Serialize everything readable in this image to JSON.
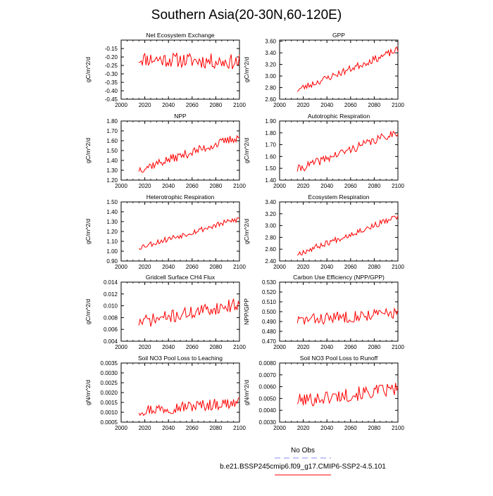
{
  "page_title": "Southern Asia(20-30N,60-120E)",
  "legend": {
    "obs_label": "No Obs",
    "obs_color": "#8888ff",
    "model_label": "b.e21.BSSP245cmip6.f09_g17.CMIP6-SSP2-4.5.101",
    "model_color": "#ff0000"
  },
  "series_color": "#ff0000",
  "chart_data": [
    {
      "type": "line",
      "title": "Net Ecosystem Exchange",
      "ylabel": "gC/m^2/d",
      "xlim": [
        2000,
        2100
      ],
      "xticks": [
        "2000",
        "2020",
        "2040",
        "2060",
        "2080",
        "2100"
      ],
      "ylim": [
        -0.45,
        -0.1
      ],
      "yticks": [
        "-0.15",
        "-0.20",
        "-0.25",
        "-0.30",
        "-0.35",
        "-0.40",
        "-0.45"
      ],
      "ytick_values": [
        -0.15,
        -0.2,
        -0.25,
        -0.3,
        -0.35,
        -0.4,
        -0.45
      ],
      "x_start": 2015,
      "x_end": 2100,
      "trend": [
        -0.21,
        -0.23
      ],
      "noise": 0.045,
      "seed": 11
    },
    {
      "type": "line",
      "title": "GPP",
      "ylabel": "gC/m^2/d",
      "xlim": [
        2000,
        2100
      ],
      "xticks": [
        "2000",
        "2020",
        "2040",
        "2060",
        "2080",
        "2100"
      ],
      "ylim": [
        2.6,
        3.62
      ],
      "yticks": [
        "3.60",
        "3.40",
        "3.20",
        "3.00",
        "2.80",
        "2.60"
      ],
      "ytick_values": [
        3.6,
        3.4,
        3.2,
        3.0,
        2.8,
        2.6
      ],
      "x_start": 2015,
      "x_end": 2100,
      "trend": [
        2.76,
        3.45
      ],
      "noise": 0.06,
      "seed": 23
    },
    {
      "type": "line",
      "title": "NPP",
      "ylabel": "gC/m^2/d",
      "xlim": [
        2000,
        2100
      ],
      "xticks": [
        "2000",
        "2020",
        "2040",
        "2060",
        "2080",
        "2100"
      ],
      "ylim": [
        1.2,
        1.8
      ],
      "yticks": [
        "1.80",
        "1.70",
        "1.60",
        "1.50",
        "1.40",
        "1.30",
        "1.20"
      ],
      "ytick_values": [
        1.8,
        1.7,
        1.6,
        1.5,
        1.4,
        1.3,
        1.2
      ],
      "x_start": 2015,
      "x_end": 2100,
      "trend": [
        1.31,
        1.64
      ],
      "noise": 0.045,
      "seed": 37
    },
    {
      "type": "line",
      "title": "Autotrophic Respiration",
      "ylabel": "gC/m^2/d",
      "xlim": [
        2000,
        2100
      ],
      "xticks": [
        "2000",
        "2020",
        "2040",
        "2060",
        "2080",
        "2100"
      ],
      "ylim": [
        1.4,
        1.9
      ],
      "yticks": [
        "1.90",
        "1.80",
        "1.70",
        "1.60",
        "1.50",
        "1.40"
      ],
      "ytick_values": [
        1.9,
        1.8,
        1.7,
        1.6,
        1.5,
        1.4
      ],
      "x_start": 2015,
      "x_end": 2100,
      "trend": [
        1.49,
        1.81
      ],
      "noise": 0.035,
      "seed": 41
    },
    {
      "type": "line",
      "title": "Heterotrophic Respiration",
      "ylabel": "gC/m^2/d",
      "xlim": [
        2000,
        2100
      ],
      "xticks": [
        "2000",
        "2020",
        "2040",
        "2060",
        "2080",
        "2100"
      ],
      "ylim": [
        0.9,
        1.5
      ],
      "yticks": [
        "1.50",
        "1.40",
        "1.30",
        "1.20",
        "1.10",
        "1.00",
        "0.90"
      ],
      "ytick_values": [
        1.5,
        1.4,
        1.3,
        1.2,
        1.1,
        1.0,
        0.9
      ],
      "x_start": 2015,
      "x_end": 2100,
      "trend": [
        1.04,
        1.33
      ],
      "noise": 0.03,
      "seed": 53
    },
    {
      "type": "line",
      "title": "Ecosystem Respiration",
      "ylabel": "gC/m^2/d",
      "xlim": [
        2000,
        2100
      ],
      "xticks": [
        "2000",
        "2020",
        "2040",
        "2060",
        "2080",
        "2100"
      ],
      "ylim": [
        2.4,
        3.4
      ],
      "yticks": [
        "3.40",
        "3.20",
        "3.00",
        "2.80",
        "2.60",
        "2.40"
      ],
      "ytick_values": [
        3.4,
        3.2,
        3.0,
        2.8,
        2.6,
        2.4
      ],
      "x_start": 2015,
      "x_end": 2100,
      "trend": [
        2.52,
        3.15
      ],
      "noise": 0.05,
      "seed": 67
    },
    {
      "type": "line",
      "title": "Gridcell Surface CH4 Flux",
      "ylabel": "gC/m^2/d",
      "xlim": [
        2000,
        2100
      ],
      "xticks": [
        "2000",
        "2020",
        "2040",
        "2060",
        "2080",
        "2100"
      ],
      "ylim": [
        0.004,
        0.014
      ],
      "yticks": [
        "0.014",
        "0.012",
        "0.010",
        "0.008",
        "0.006",
        "0.004"
      ],
      "ytick_values": [
        0.014,
        0.012,
        0.01,
        0.008,
        0.006,
        0.004
      ],
      "x_start": 2015,
      "x_end": 2100,
      "trend": [
        0.0072,
        0.0103
      ],
      "noise": 0.0011,
      "seed": 71
    },
    {
      "type": "line",
      "title": "Carbon Use Efficiency (NPP/GPP)",
      "ylabel": "NPP/GPP",
      "xlim": [
        2000,
        2100
      ],
      "xticks": [
        "2000",
        "2020",
        "2040",
        "2060",
        "2080",
        "2100"
      ],
      "ylim": [
        0.47,
        0.53
      ],
      "yticks": [
        "0.530",
        "0.520",
        "0.510",
        "0.500",
        "0.490",
        "0.480",
        "0.470"
      ],
      "ytick_values": [
        0.53,
        0.52,
        0.51,
        0.5,
        0.49,
        0.48,
        0.47
      ],
      "x_start": 2015,
      "x_end": 2100,
      "trend": [
        0.491,
        0.499
      ],
      "noise": 0.006,
      "seed": 83
    },
    {
      "type": "line",
      "title": "Soil NO3 Pool Loss to Leaching",
      "ylabel": "gN/m^2/d",
      "xlim": [
        2000,
        2100
      ],
      "xticks": [
        "2000",
        "2020",
        "2040",
        "2060",
        "2080",
        "2100"
      ],
      "ylim": [
        0.0005,
        0.0035
      ],
      "yticks": [
        "0.0035",
        "0.0030",
        "0.0025",
        "0.0020",
        "0.0015",
        "0.0010",
        "0.0005"
      ],
      "ytick_values": [
        0.0035,
        0.003,
        0.0025,
        0.002,
        0.0015,
        0.001,
        0.0005
      ],
      "x_start": 2015,
      "x_end": 2100,
      "trend": [
        0.0011,
        0.0015
      ],
      "noise": 0.0003,
      "seed": 97
    },
    {
      "type": "line",
      "title": "Soil NO3 Pool Loss to Runoff",
      "ylabel": "gN/m^2/d",
      "xlim": [
        2000,
        2100
      ],
      "xticks": [
        "2000",
        "2020",
        "2040",
        "2060",
        "2080",
        "2100"
      ],
      "ylim": [
        0.003,
        0.008
      ],
      "yticks": [
        "0.0080",
        "0.0070",
        "0.0060",
        "0.0050",
        "0.0040",
        "0.0030"
      ],
      "ytick_values": [
        0.008,
        0.007,
        0.006,
        0.005,
        0.004,
        0.003
      ],
      "x_start": 2015,
      "x_end": 2100,
      "trend": [
        0.0048,
        0.0058
      ],
      "noise": 0.0006,
      "seed": 101
    }
  ]
}
